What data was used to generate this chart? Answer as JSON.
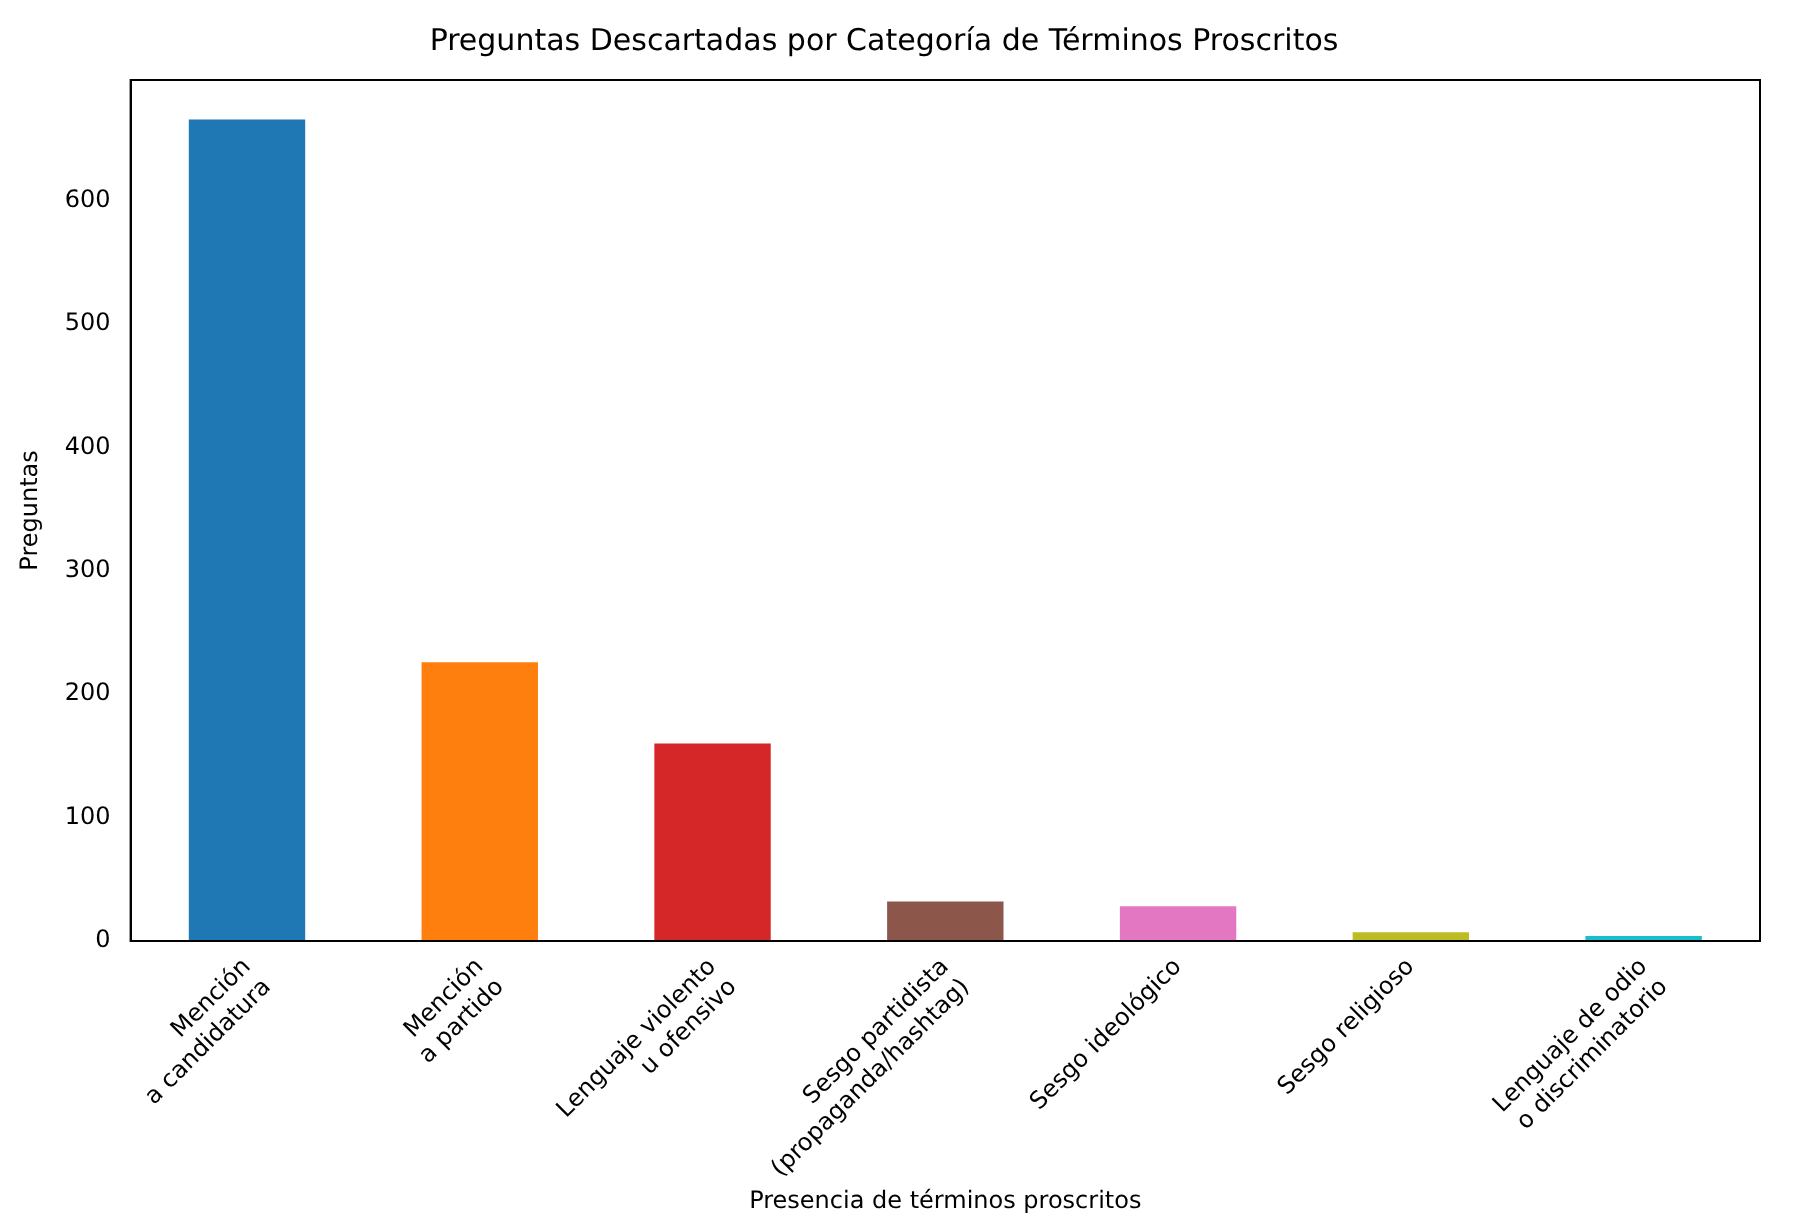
{
  "chart_data": {
    "type": "bar",
    "title": "Preguntas Descartadas por Categoría de Términos Proscritos",
    "xlabel": "Presencia de términos proscritos",
    "ylabel": "Preguntas",
    "categories": [
      "Mención\na candidatura",
      "Mención\na partido",
      "Lenguaje violento\nu ofensivo",
      "Sesgo partidista\n(propaganda/hashtag)",
      "Sesgo ideológico",
      "Sesgo religioso",
      "Lenguaje de odio\no discriminatorio"
    ],
    "values": [
      666,
      226,
      160,
      32,
      28,
      7,
      4
    ],
    "colors": [
      "#1f77b4",
      "#ff7f0e",
      "#d62728",
      "#8c564b",
      "#e377c2",
      "#bcbd22",
      "#17becf"
    ],
    "ylim": [
      0,
      698
    ],
    "yticks": [
      0,
      100,
      200,
      300,
      400,
      500,
      600
    ],
    "grid": false,
    "legend": false
  }
}
